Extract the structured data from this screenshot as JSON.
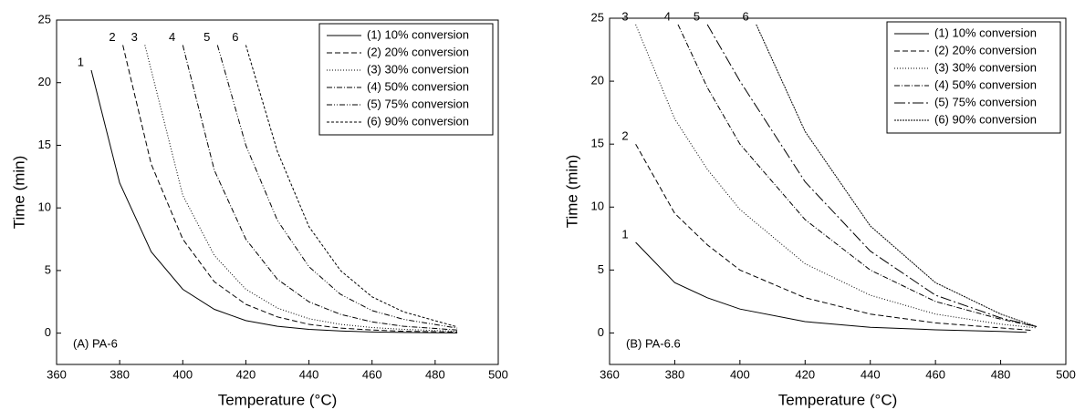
{
  "chart_data": [
    {
      "type": "line",
      "xlabel": "Temperature (°C)",
      "ylabel": "Time (min)",
      "annotation": "(A) PA-6",
      "xlim": [
        360,
        500
      ],
      "ylim": [
        -2.5,
        25
      ],
      "xticks": [
        360,
        380,
        400,
        420,
        440,
        460,
        480,
        500
      ],
      "yticks": [
        0,
        5,
        10,
        15,
        20,
        25
      ],
      "legend": "upper right",
      "series": [
        {
          "name": "(1) 10% conversion",
          "label": "1",
          "color": "#000000",
          "dash": "none",
          "x": [
            371,
            380,
            390,
            400,
            410,
            420,
            430,
            440,
            450,
            460,
            470,
            487
          ],
          "values": [
            21,
            12,
            6.5,
            3.5,
            1.9,
            1.0,
            0.55,
            0.3,
            0.17,
            0.09,
            0.05,
            0.02
          ]
        },
        {
          "name": "(2) 20% conversion",
          "label": "2",
          "color": "#000000",
          "dash": "6,3",
          "x": [
            381,
            390,
            400,
            410,
            420,
            430,
            440,
            450,
            460,
            470,
            487
          ],
          "values": [
            23,
            13.5,
            7.5,
            4.1,
            2.3,
            1.3,
            0.7,
            0.4,
            0.25,
            0.15,
            0.08
          ]
        },
        {
          "name": "(3) 30% conversion",
          "label": "3",
          "color": "#000000",
          "dash": "1,2",
          "x": [
            388,
            400,
            410,
            420,
            430,
            440,
            450,
            460,
            470,
            487
          ],
          "values": [
            23,
            11,
            6.2,
            3.5,
            2.0,
            1.15,
            0.7,
            0.45,
            0.3,
            0.15
          ]
        },
        {
          "name": "(4) 50% conversion",
          "label": "4",
          "color": "#000000",
          "dash": "6,2,1,2",
          "x": [
            400,
            410,
            420,
            430,
            440,
            450,
            460,
            470,
            487
          ],
          "values": [
            23,
            13,
            7.5,
            4.3,
            2.5,
            1.5,
            0.9,
            0.55,
            0.25
          ]
        },
        {
          "name": "(5) 75% conversion",
          "label": "5",
          "color": "#000000",
          "dash": "6,2,1,2,1,2",
          "x": [
            411,
            420,
            430,
            440,
            450,
            460,
            470,
            487
          ],
          "values": [
            23,
            15,
            9,
            5.3,
            3.1,
            1.8,
            1.1,
            0.4
          ]
        },
        {
          "name": "(6) 90% conversion",
          "label": "6",
          "color": "#000000",
          "dash": "3,2",
          "x": [
            420,
            430,
            440,
            450,
            460,
            470,
            487
          ],
          "values": [
            23,
            14.5,
            8.5,
            5.0,
            2.9,
            1.7,
            0.5
          ]
        }
      ]
    },
    {
      "type": "line",
      "xlabel": "Temperature (°C)",
      "ylabel": "Time (min)",
      "annotation": "(B) PA-6.6",
      "xlim": [
        360,
        500
      ],
      "ylim": [
        -2.5,
        25
      ],
      "xticks": [
        360,
        380,
        400,
        420,
        440,
        460,
        480,
        500
      ],
      "yticks": [
        0,
        5,
        10,
        15,
        20,
        25
      ],
      "legend": "upper right",
      "series": [
        {
          "name": "(1) 10% conversion",
          "label": "1",
          "color": "#000000",
          "dash": "none",
          "x": [
            368,
            380,
            390,
            400,
            420,
            440,
            460,
            480,
            488
          ],
          "values": [
            7.2,
            4.0,
            2.8,
            1.9,
            0.9,
            0.45,
            0.25,
            0.12,
            0.05
          ]
        },
        {
          "name": "(2) 20% conversion",
          "label": "2",
          "color": "#000000",
          "dash": "6,3",
          "x": [
            368,
            380,
            390,
            400,
            420,
            440,
            460,
            480,
            490
          ],
          "values": [
            15,
            9.5,
            7,
            5,
            2.8,
            1.5,
            0.8,
            0.4,
            0.2
          ]
        },
        {
          "name": "(3) 30% conversion",
          "label": "3",
          "color": "#000000",
          "dash": "1,2",
          "x": [
            368,
            380,
            390,
            400,
            420,
            440,
            460,
            480,
            491
          ],
          "values": [
            24.5,
            17,
            13,
            9.8,
            5.5,
            3,
            1.5,
            0.7,
            0.4
          ]
        },
        {
          "name": "(4) 50% conversion",
          "label": "4",
          "color": "#000000",
          "dash": "6,2,1,2",
          "x": [
            381,
            390,
            400,
            420,
            440,
            460,
            480,
            491
          ],
          "values": [
            24.5,
            19.5,
            15,
            9,
            5,
            2.5,
            1.1,
            0.5
          ]
        },
        {
          "name": "(5) 75% conversion",
          "label": "5",
          "color": "#000000",
          "dash": "12,3,2,3",
          "x": [
            390,
            400,
            420,
            440,
            460,
            480,
            491
          ],
          "values": [
            24.5,
            20,
            12,
            6.5,
            3,
            1.2,
            0.5
          ]
        },
        {
          "name": "(6) 90% conversion",
          "label": "6",
          "color": "#000000",
          "dash": "2,1",
          "x": [
            405,
            420,
            440,
            460,
            480,
            491
          ],
          "values": [
            24.5,
            16,
            8.5,
            4,
            1.5,
            0.5
          ]
        }
      ]
    }
  ]
}
